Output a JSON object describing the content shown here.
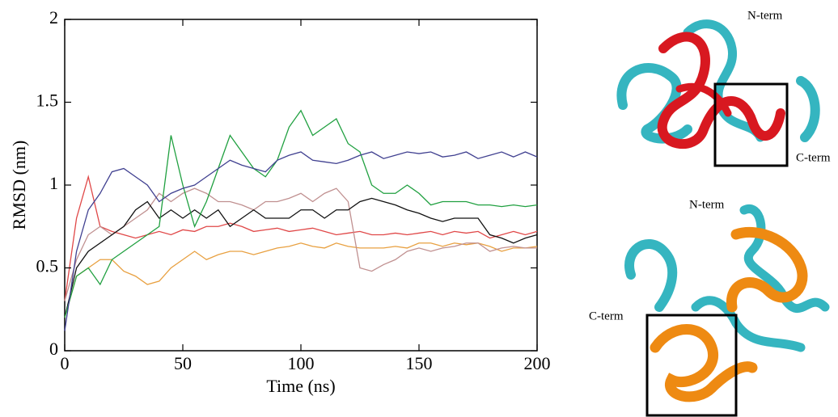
{
  "chart_data": {
    "type": "line",
    "x_label": "Time (ns)",
    "y_label": "RMSD (nm)",
    "x": [
      0,
      5,
      10,
      15,
      20,
      25,
      30,
      35,
      40,
      45,
      50,
      55,
      60,
      65,
      70,
      75,
      80,
      85,
      90,
      95,
      100,
      105,
      110,
      115,
      120,
      125,
      130,
      135,
      140,
      145,
      150,
      155,
      160,
      165,
      170,
      175,
      180,
      185,
      190,
      195,
      200
    ],
    "series": [
      {
        "color": "#e8a040",
        "values": [
          0.2,
          0.45,
          0.5,
          0.55,
          0.55,
          0.48,
          0.45,
          0.4,
          0.42,
          0.5,
          0.55,
          0.6,
          0.55,
          0.58,
          0.6,
          0.6,
          0.58,
          0.6,
          0.62,
          0.63,
          0.65,
          0.63,
          0.62,
          0.65,
          0.63,
          0.62,
          0.62,
          0.62,
          0.63,
          0.62,
          0.65,
          0.65,
          0.63,
          0.65,
          0.64,
          0.65,
          0.63,
          0.6,
          0.62,
          0.62,
          0.63
        ]
      },
      {
        "color": "#e04848",
        "values": [
          0.3,
          0.8,
          1.05,
          0.75,
          0.72,
          0.7,
          0.68,
          0.7,
          0.72,
          0.7,
          0.73,
          0.72,
          0.75,
          0.75,
          0.77,
          0.75,
          0.72,
          0.73,
          0.74,
          0.72,
          0.73,
          0.74,
          0.72,
          0.7,
          0.71,
          0.72,
          0.7,
          0.7,
          0.71,
          0.7,
          0.71,
          0.72,
          0.7,
          0.72,
          0.71,
          0.72,
          0.68,
          0.7,
          0.72,
          0.7,
          0.72
        ]
      },
      {
        "color": "#c09090",
        "values": [
          0.3,
          0.55,
          0.7,
          0.75,
          0.7,
          0.75,
          0.8,
          0.85,
          0.95,
          0.9,
          0.95,
          0.98,
          0.95,
          0.9,
          0.9,
          0.88,
          0.85,
          0.9,
          0.9,
          0.92,
          0.95,
          0.9,
          0.95,
          0.98,
          0.9,
          0.5,
          0.48,
          0.52,
          0.55,
          0.6,
          0.62,
          0.6,
          0.62,
          0.63,
          0.65,
          0.65,
          0.6,
          0.62,
          0.63,
          0.62,
          0.62
        ]
      },
      {
        "color": "#111111",
        "values": [
          0.2,
          0.5,
          0.6,
          0.65,
          0.7,
          0.75,
          0.85,
          0.9,
          0.8,
          0.85,
          0.8,
          0.85,
          0.8,
          0.85,
          0.75,
          0.8,
          0.85,
          0.8,
          0.8,
          0.8,
          0.85,
          0.85,
          0.8,
          0.85,
          0.85,
          0.9,
          0.92,
          0.9,
          0.88,
          0.85,
          0.83,
          0.8,
          0.78,
          0.8,
          0.8,
          0.8,
          0.7,
          0.68,
          0.65,
          0.68,
          0.7
        ]
      },
      {
        "color": "#20a040",
        "values": [
          0.2,
          0.45,
          0.5,
          0.4,
          0.55,
          0.6,
          0.65,
          0.7,
          0.75,
          1.3,
          1.0,
          0.75,
          0.9,
          1.1,
          1.3,
          1.2,
          1.1,
          1.05,
          1.15,
          1.35,
          1.45,
          1.3,
          1.35,
          1.4,
          1.25,
          1.2,
          1.0,
          0.95,
          0.95,
          1.0,
          0.95,
          0.88,
          0.9,
          0.9,
          0.9,
          0.88,
          0.88,
          0.87,
          0.88,
          0.87,
          0.88
        ]
      },
      {
        "color": "#404090",
        "values": [
          0.12,
          0.6,
          0.85,
          0.95,
          1.08,
          1.1,
          1.05,
          1.0,
          0.9,
          0.95,
          0.98,
          1.0,
          1.05,
          1.1,
          1.15,
          1.12,
          1.1,
          1.08,
          1.15,
          1.18,
          1.2,
          1.15,
          1.14,
          1.13,
          1.15,
          1.18,
          1.2,
          1.16,
          1.18,
          1.2,
          1.19,
          1.2,
          1.17,
          1.18,
          1.2,
          1.16,
          1.18,
          1.2,
          1.17,
          1.2,
          1.17
        ]
      }
    ],
    "xlim": [
      0,
      200
    ],
    "xticks": [
      0,
      50,
      100,
      150,
      200
    ],
    "ylim": [
      0,
      2
    ],
    "yticks": [
      0,
      0.5,
      1,
      1.5,
      2
    ]
  },
  "structures": [
    {
      "labels": [
        "N-term",
        "C-term"
      ]
    },
    {
      "labels": [
        "N-term",
        "C-term"
      ]
    }
  ]
}
